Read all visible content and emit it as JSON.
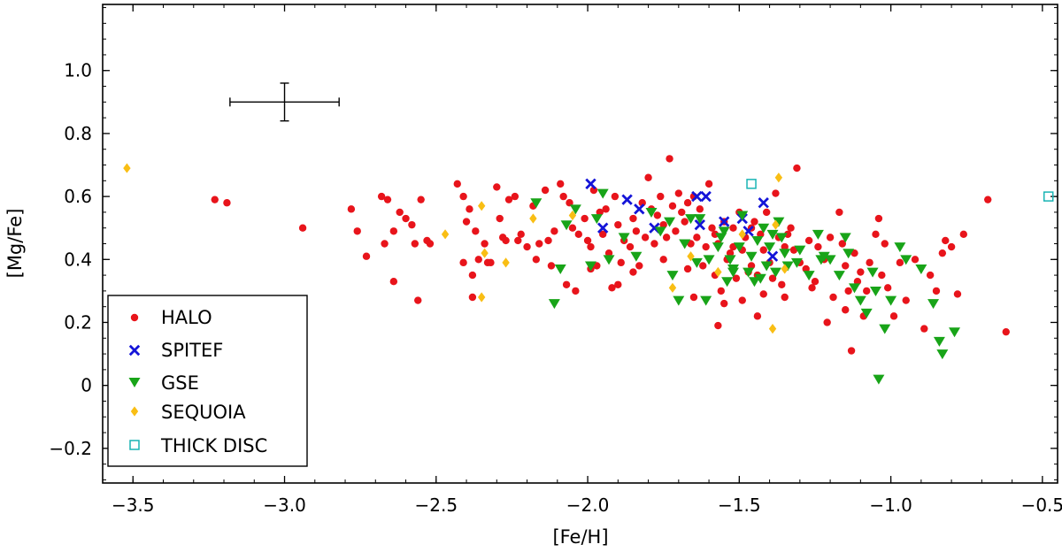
{
  "chart_data": {
    "type": "scatter",
    "xlabel": "[Fe/H]",
    "ylabel": "[Mg/Fe]",
    "xlim": [
      -3.6,
      -0.45
    ],
    "ylim": [
      -0.31,
      1.21
    ],
    "xticks": [
      -3.5,
      -3.0,
      -2.5,
      -2.0,
      -1.5,
      -1.0,
      -0.5
    ],
    "xtick_labels": [
      "−3.5",
      "−3.0",
      "−2.5",
      "−2.0",
      "−1.5",
      "−1.0",
      "−0.5"
    ],
    "yticks": [
      -0.2,
      0.0,
      0.2,
      0.4,
      0.6,
      0.8,
      1.0
    ],
    "ytick_labels": [
      "−0.2",
      "0",
      "0.2",
      "0.4",
      "0.6",
      "0.8",
      "1.0"
    ],
    "x_minor_step": 0.1,
    "y_minor_step": 0.05,
    "grid": false,
    "legend_position": "lower-left",
    "error_bar": {
      "x": -3.0,
      "y": 0.9,
      "xerr": 0.18,
      "yerr": 0.06
    },
    "series": [
      {
        "name": "HALO",
        "marker": "circle",
        "color": "#e8141b",
        "points": [
          [
            -3.23,
            0.59
          ],
          [
            -3.19,
            0.58
          ],
          [
            -2.94,
            0.5
          ],
          [
            -2.78,
            0.56
          ],
          [
            -2.76,
            0.49
          ],
          [
            -2.73,
            0.41
          ],
          [
            -2.68,
            0.6
          ],
          [
            -2.66,
            0.59
          ],
          [
            -2.64,
            0.49
          ],
          [
            -2.67,
            0.45
          ],
          [
            -2.64,
            0.33
          ],
          [
            -2.62,
            0.55
          ],
          [
            -2.6,
            0.53
          ],
          [
            -2.58,
            0.51
          ],
          [
            -2.57,
            0.45
          ],
          [
            -2.55,
            0.59
          ],
          [
            -2.53,
            0.46
          ],
          [
            -2.52,
            0.45
          ],
          [
            -2.56,
            0.27
          ],
          [
            -2.43,
            0.64
          ],
          [
            -2.41,
            0.6
          ],
          [
            -2.41,
            0.39
          ],
          [
            -2.39,
            0.56
          ],
          [
            -2.4,
            0.52
          ],
          [
            -2.37,
            0.49
          ],
          [
            -2.38,
            0.35
          ],
          [
            -2.36,
            0.4
          ],
          [
            -2.34,
            0.45
          ],
          [
            -2.33,
            0.39
          ],
          [
            -2.32,
            0.39
          ],
          [
            -2.3,
            0.63
          ],
          [
            -2.29,
            0.53
          ],
          [
            -2.28,
            0.47
          ],
          [
            -2.27,
            0.46
          ],
          [
            -2.24,
            0.6
          ],
          [
            -2.23,
            0.46
          ],
          [
            -2.22,
            0.48
          ],
          [
            -2.2,
            0.44
          ],
          [
            -2.18,
            0.57
          ],
          [
            -2.17,
            0.4
          ],
          [
            -2.14,
            0.62
          ],
          [
            -2.13,
            0.46
          ],
          [
            -2.12,
            0.38
          ],
          [
            -2.11,
            0.49
          ],
          [
            -2.09,
            0.64
          ],
          [
            -2.08,
            0.6
          ],
          [
            -2.07,
            0.32
          ],
          [
            -2.06,
            0.58
          ],
          [
            -2.05,
            0.5
          ],
          [
            -2.04,
            0.3
          ],
          [
            -2.03,
            0.48
          ],
          [
            -2.01,
            0.53
          ],
          [
            -2.0,
            0.46
          ],
          [
            -1.99,
            0.44
          ],
          [
            -1.98,
            0.62
          ],
          [
            -1.97,
            0.38
          ],
          [
            -1.95,
            0.48
          ],
          [
            -1.94,
            0.56
          ],
          [
            -1.93,
            0.42
          ],
          [
            -1.92,
            0.31
          ],
          [
            -1.91,
            0.6
          ],
          [
            -1.9,
            0.51
          ],
          [
            -1.89,
            0.39
          ],
          [
            -1.88,
            0.46
          ],
          [
            -1.86,
            0.44
          ],
          [
            -1.85,
            0.53
          ],
          [
            -1.84,
            0.49
          ],
          [
            -1.83,
            0.38
          ],
          [
            -1.82,
            0.58
          ],
          [
            -1.81,
            0.47
          ],
          [
            -1.8,
            0.66
          ],
          [
            -1.79,
            0.56
          ],
          [
            -1.78,
            0.45
          ],
          [
            -1.77,
            0.54
          ],
          [
            -1.76,
            0.6
          ],
          [
            -1.75,
            0.51
          ],
          [
            -1.74,
            0.47
          ],
          [
            -1.73,
            0.72
          ],
          [
            -1.72,
            0.57
          ],
          [
            -1.71,
            0.49
          ],
          [
            -1.7,
            0.61
          ],
          [
            -1.69,
            0.55
          ],
          [
            -1.68,
            0.52
          ],
          [
            -1.67,
            0.58
          ],
          [
            -1.66,
            0.45
          ],
          [
            -1.65,
            0.6
          ],
          [
            -1.64,
            0.47
          ],
          [
            -1.63,
            0.56
          ],
          [
            -1.62,
            0.38
          ],
          [
            -1.61,
            0.44
          ],
          [
            -1.6,
            0.64
          ],
          [
            -1.59,
            0.5
          ],
          [
            -1.58,
            0.35
          ],
          [
            -1.57,
            0.45
          ],
          [
            -1.56,
            0.3
          ],
          [
            -1.55,
            0.52
          ],
          [
            -1.54,
            0.4
          ],
          [
            -1.53,
            0.42
          ],
          [
            -1.52,
            0.5
          ],
          [
            -1.51,
            0.34
          ],
          [
            -1.5,
            0.55
          ],
          [
            -1.49,
            0.43
          ],
          [
            -1.48,
            0.47
          ],
          [
            -1.47,
            0.36
          ],
          [
            -1.46,
            0.38
          ],
          [
            -1.45,
            0.52
          ],
          [
            -1.44,
            0.35
          ],
          [
            -1.43,
            0.48
          ],
          [
            -1.42,
            0.43
          ],
          [
            -1.41,
            0.55
          ],
          [
            -1.4,
            0.39
          ],
          [
            -1.39,
            0.34
          ],
          [
            -1.38,
            0.61
          ],
          [
            -1.37,
            0.47
          ],
          [
            -1.36,
            0.32
          ],
          [
            -1.35,
            0.44
          ],
          [
            -1.34,
            0.48
          ],
          [
            -1.33,
            0.5
          ],
          [
            -1.32,
            0.43
          ],
          [
            -1.31,
            0.69
          ],
          [
            -1.3,
            0.39
          ],
          [
            -1.28,
            0.37
          ],
          [
            -1.27,
            0.46
          ],
          [
            -1.25,
            0.33
          ],
          [
            -1.24,
            0.44
          ],
          [
            -1.22,
            0.4
          ],
          [
            -1.21,
            0.2
          ],
          [
            -1.2,
            0.47
          ],
          [
            -1.19,
            0.28
          ],
          [
            -1.17,
            0.55
          ],
          [
            -1.16,
            0.45
          ],
          [
            -1.15,
            0.38
          ],
          [
            -1.14,
            0.3
          ],
          [
            -1.13,
            0.11
          ],
          [
            -1.12,
            0.42
          ],
          [
            -1.11,
            0.33
          ],
          [
            -1.1,
            0.36
          ],
          [
            -1.09,
            0.22
          ],
          [
            -1.08,
            0.3
          ],
          [
            -1.07,
            0.39
          ],
          [
            -1.05,
            0.48
          ],
          [
            -1.04,
            0.53
          ],
          [
            -1.03,
            0.35
          ],
          [
            -1.02,
            0.45
          ],
          [
            -1.01,
            0.31
          ],
          [
            -0.99,
            0.22
          ],
          [
            -0.97,
            0.39
          ],
          [
            -0.95,
            0.27
          ],
          [
            -0.92,
            0.4
          ],
          [
            -0.89,
            0.18
          ],
          [
            -0.87,
            0.35
          ],
          [
            -0.85,
            0.3
          ],
          [
            -0.83,
            0.42
          ],
          [
            -0.82,
            0.46
          ],
          [
            -0.8,
            0.44
          ],
          [
            -0.78,
            0.29
          ],
          [
            -0.76,
            0.48
          ],
          [
            -0.68,
            0.59
          ],
          [
            -0.62,
            0.17
          ],
          [
            -1.9,
            0.32
          ],
          [
            -1.85,
            0.36
          ],
          [
            -1.67,
            0.37
          ],
          [
            -1.58,
            0.48
          ],
          [
            -1.49,
            0.27
          ],
          [
            -1.44,
            0.22
          ],
          [
            -1.35,
            0.28
          ],
          [
            -1.15,
            0.24
          ],
          [
            -1.65,
            0.28
          ],
          [
            -2.26,
            0.59
          ],
          [
            -2.16,
            0.45
          ],
          [
            -1.96,
            0.55
          ],
          [
            -1.75,
            0.4
          ],
          [
            -1.55,
            0.26
          ],
          [
            -1.42,
            0.29
          ],
          [
            -1.26,
            0.31
          ],
          [
            -1.57,
            0.19
          ],
          [
            -1.99,
            0.37
          ],
          [
            -2.38,
            0.28
          ],
          [
            -1.52,
            0.44
          ],
          [
            -1.46,
            0.5
          ]
        ]
      },
      {
        "name": "SPITEF",
        "marker": "x",
        "color": "#1414d8",
        "points": [
          [
            -1.99,
            0.64
          ],
          [
            -1.95,
            0.5
          ],
          [
            -1.87,
            0.59
          ],
          [
            -1.83,
            0.56
          ],
          [
            -1.78,
            0.5
          ],
          [
            -1.64,
            0.6
          ],
          [
            -1.63,
            0.51
          ],
          [
            -1.61,
            0.6
          ],
          [
            -1.55,
            0.52
          ],
          [
            -1.49,
            0.53
          ],
          [
            -1.47,
            0.49
          ],
          [
            -1.42,
            0.58
          ],
          [
            -1.39,
            0.41
          ]
        ]
      },
      {
        "name": "GSE",
        "marker": "triangle-down",
        "color": "#18a418",
        "points": [
          [
            -2.17,
            0.58
          ],
          [
            -2.11,
            0.26
          ],
          [
            -2.09,
            0.37
          ],
          [
            -2.07,
            0.51
          ],
          [
            -2.04,
            0.56
          ],
          [
            -1.99,
            0.38
          ],
          [
            -1.97,
            0.53
          ],
          [
            -1.95,
            0.61
          ],
          [
            -1.93,
            0.4
          ],
          [
            -1.88,
            0.47
          ],
          [
            -1.84,
            0.41
          ],
          [
            -1.79,
            0.55
          ],
          [
            -1.76,
            0.49
          ],
          [
            -1.72,
            0.35
          ],
          [
            -1.7,
            0.27
          ],
          [
            -1.68,
            0.45
          ],
          [
            -1.66,
            0.53
          ],
          [
            -1.64,
            0.39
          ],
          [
            -1.61,
            0.27
          ],
          [
            -1.57,
            0.44
          ],
          [
            -1.55,
            0.49
          ],
          [
            -1.53,
            0.4
          ],
          [
            -1.52,
            0.37
          ],
          [
            -1.5,
            0.44
          ],
          [
            -1.49,
            0.54
          ],
          [
            -1.47,
            0.36
          ],
          [
            -1.46,
            0.41
          ],
          [
            -1.44,
            0.46
          ],
          [
            -1.43,
            0.34
          ],
          [
            -1.42,
            0.5
          ],
          [
            -1.41,
            0.38
          ],
          [
            -1.4,
            0.44
          ],
          [
            -1.38,
            0.36
          ],
          [
            -1.37,
            0.52
          ],
          [
            -1.36,
            0.47
          ],
          [
            -1.35,
            0.42
          ],
          [
            -1.34,
            0.38
          ],
          [
            -1.31,
            0.39
          ],
          [
            -1.27,
            0.35
          ],
          [
            -1.24,
            0.48
          ],
          [
            -1.22,
            0.41
          ],
          [
            -1.2,
            0.4
          ],
          [
            -1.17,
            0.35
          ],
          [
            -1.15,
            0.47
          ],
          [
            -1.12,
            0.31
          ],
          [
            -1.1,
            0.27
          ],
          [
            -1.08,
            0.23
          ],
          [
            -1.05,
            0.3
          ],
          [
            -1.04,
            0.02
          ],
          [
            -1.02,
            0.18
          ],
          [
            -1.0,
            0.27
          ],
          [
            -0.97,
            0.44
          ],
          [
            -0.95,
            0.4
          ],
          [
            -0.9,
            0.37
          ],
          [
            -0.86,
            0.26
          ],
          [
            -0.84,
            0.14
          ],
          [
            -0.83,
            0.1
          ],
          [
            -0.79,
            0.17
          ],
          [
            -1.52,
            0.36
          ],
          [
            -1.6,
            0.4
          ],
          [
            -1.54,
            0.33
          ],
          [
            -1.45,
            0.33
          ],
          [
            -1.56,
            0.47
          ],
          [
            -1.63,
            0.53
          ],
          [
            -1.73,
            0.52
          ],
          [
            -1.39,
            0.48
          ],
          [
            -1.3,
            0.43
          ],
          [
            -1.23,
            0.4
          ],
          [
            -1.14,
            0.42
          ],
          [
            -1.06,
            0.36
          ]
        ]
      },
      {
        "name": "SEQUOIA",
        "marker": "diamond",
        "color": "#f9be14",
        "points": [
          [
            -3.52,
            0.69
          ],
          [
            -2.47,
            0.48
          ],
          [
            -2.35,
            0.57
          ],
          [
            -2.35,
            0.28
          ],
          [
            -2.34,
            0.42
          ],
          [
            -2.27,
            0.39
          ],
          [
            -2.18,
            0.53
          ],
          [
            -2.05,
            0.54
          ],
          [
            -1.72,
            0.31
          ],
          [
            -1.66,
            0.41
          ],
          [
            -1.57,
            0.36
          ],
          [
            -1.49,
            0.48
          ],
          [
            -1.39,
            0.18
          ],
          [
            -1.38,
            0.51
          ],
          [
            -1.37,
            0.66
          ],
          [
            -1.35,
            0.37
          ]
        ]
      },
      {
        "name": "THICK DISC",
        "marker": "square-open",
        "color": "#18b4b4",
        "points": [
          [
            -1.46,
            0.64
          ],
          [
            -0.48,
            0.6
          ]
        ]
      }
    ]
  }
}
